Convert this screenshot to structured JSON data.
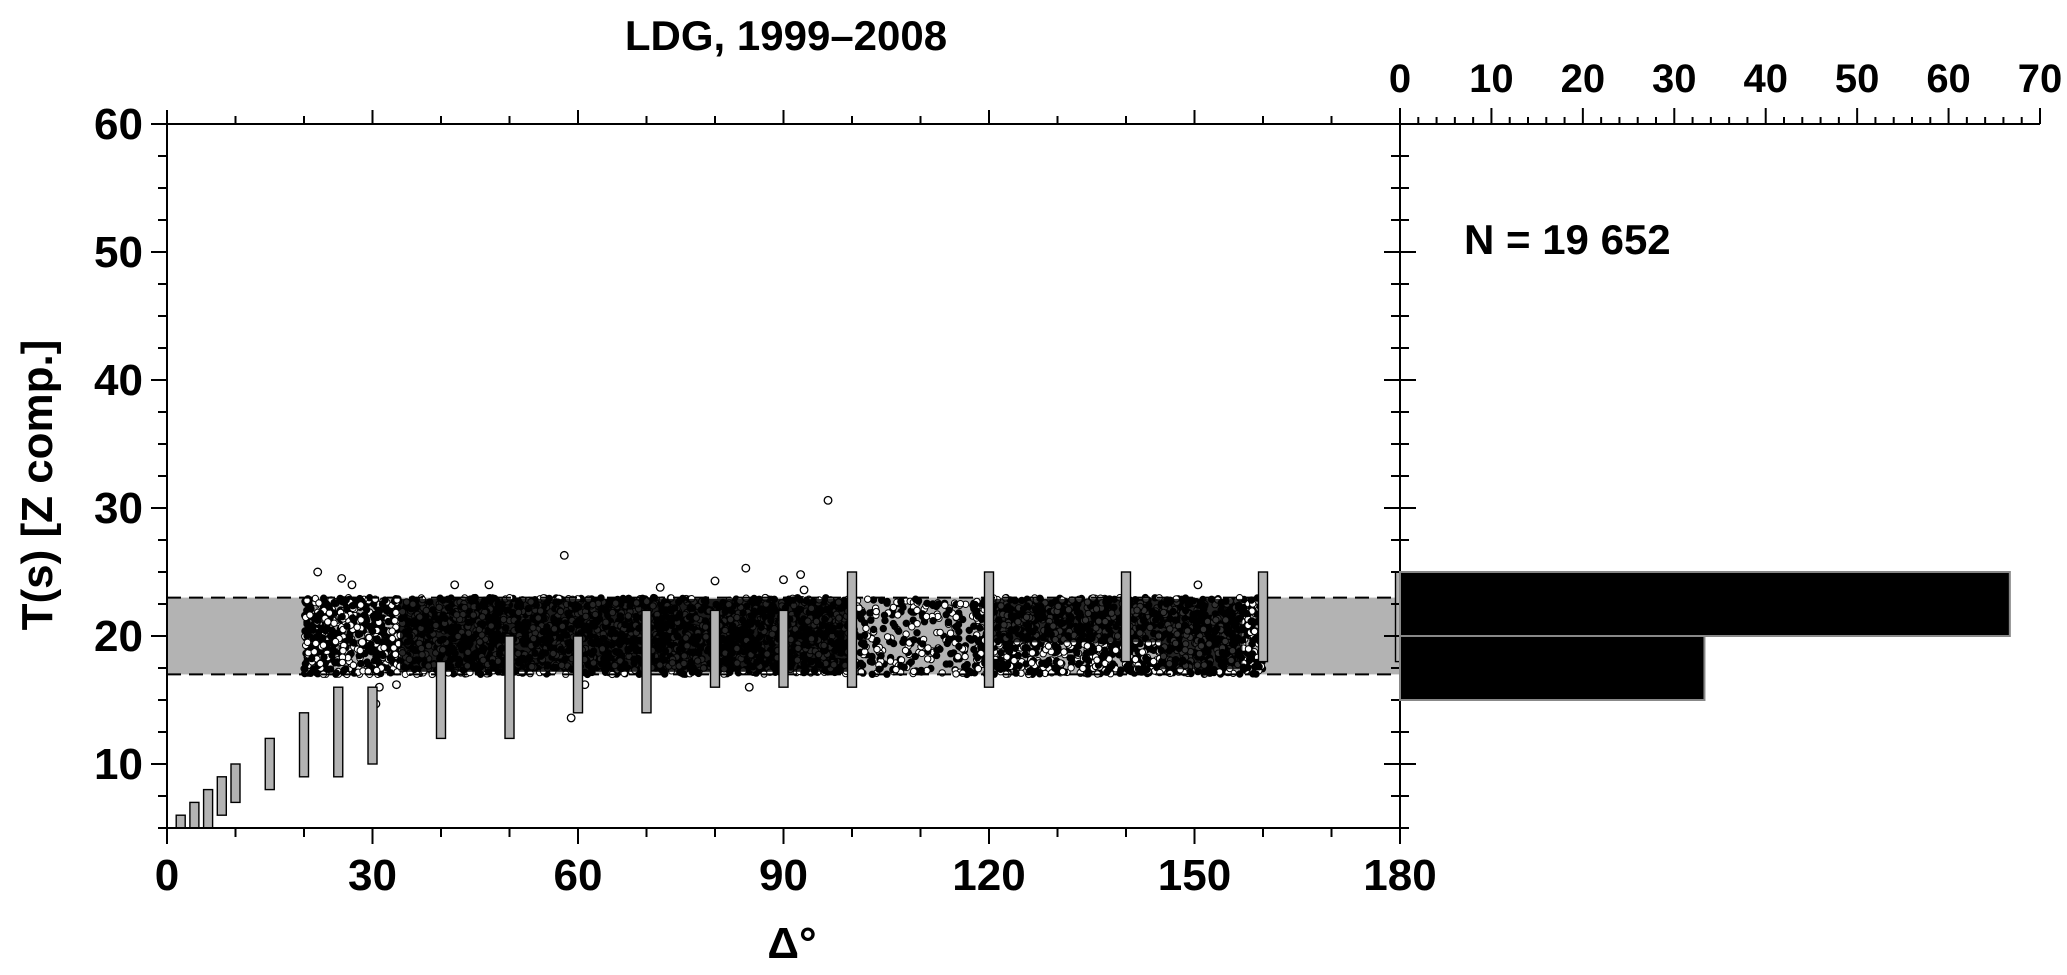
{
  "chart_data": [
    {
      "type": "scatter",
      "title": "LDG, 1999–2008",
      "xlabel": "Δ°",
      "ylabel": "T(s) [Z comp.]",
      "xlim": [
        0,
        180
      ],
      "ylim": [
        5,
        60
      ],
      "x_ticks": [
        0,
        30,
        60,
        90,
        120,
        150,
        180
      ],
      "y_ticks": [
        10,
        20,
        30,
        40,
        50,
        60
      ],
      "grid": false,
      "band": {
        "ymin": 17,
        "ymax": 23,
        "xmin": 0,
        "xmax": 180,
        "color": "#b3b3b3",
        "line_style": "dashed"
      },
      "scatter_dense_region": {
        "xmin": 20,
        "xmax": 160,
        "ymin": 17,
        "ymax": 23
      },
      "outliers": [
        [
          22,
          25
        ],
        [
          25.5,
          24.5
        ],
        [
          27,
          24
        ],
        [
          28.5,
          19.5
        ],
        [
          31,
          16
        ],
        [
          30,
          15
        ],
        [
          30.5,
          14.7
        ],
        [
          33.5,
          16.2
        ],
        [
          42,
          24
        ],
        [
          47,
          24
        ],
        [
          58,
          26.3
        ],
        [
          59,
          13.6
        ],
        [
          61,
          16.2
        ],
        [
          72,
          23.8
        ],
        [
          80,
          24.3
        ],
        [
          84.5,
          25.3
        ],
        [
          85,
          16
        ],
        [
          90,
          24.4
        ],
        [
          92.5,
          24.8
        ],
        [
          93,
          23.6
        ],
        [
          96.5,
          30.6
        ],
        [
          150.5,
          24
        ]
      ],
      "windows": [
        {
          "delta": 2,
          "tmin": 5,
          "tmax": 6
        },
        {
          "delta": 4,
          "tmin": 5,
          "tmax": 7
        },
        {
          "delta": 6,
          "tmin": 5,
          "tmax": 8
        },
        {
          "delta": 8,
          "tmin": 6,
          "tmax": 9
        },
        {
          "delta": 10,
          "tmin": 7,
          "tmax": 10
        },
        {
          "delta": 15,
          "tmin": 8,
          "tmax": 12
        },
        {
          "delta": 20,
          "tmin": 9,
          "tmax": 14
        },
        {
          "delta": 25,
          "tmin": 9,
          "tmax": 16
        },
        {
          "delta": 30,
          "tmin": 10,
          "tmax": 16
        },
        {
          "delta": 40,
          "tmin": 12,
          "tmax": 18
        },
        {
          "delta": 50,
          "tmin": 12,
          "tmax": 20
        },
        {
          "delta": 60,
          "tmin": 14,
          "tmax": 20
        },
        {
          "delta": 70,
          "tmin": 14,
          "tmax": 22
        },
        {
          "delta": 80,
          "tmin": 16,
          "tmax": 22
        },
        {
          "delta": 90,
          "tmin": 16,
          "tmax": 22
        },
        {
          "delta": 100,
          "tmin": 16,
          "tmax": 25
        },
        {
          "delta": 120,
          "tmin": 16,
          "tmax": 25
        },
        {
          "delta": 140,
          "tmin": 18,
          "tmax": 25
        },
        {
          "delta": 160,
          "tmin": 18,
          "tmax": 25
        },
        {
          "delta": 180,
          "tmin": 18,
          "tmax": 25
        }
      ]
    },
    {
      "type": "bar",
      "orientation": "horizontal",
      "xlim": [
        0,
        70
      ],
      "x_ticks": [
        0,
        10,
        20,
        30,
        40,
        50,
        60,
        70
      ],
      "x_axis_position": "top",
      "ylim": [
        5,
        60
      ],
      "annotation": "N = 19 652",
      "bars": [
        {
          "tmin": 20,
          "tmax": 25,
          "value": 66.7,
          "color": "#000000"
        },
        {
          "tmin": 15,
          "tmax": 20,
          "value": 33.3,
          "color": "#000000"
        }
      ]
    }
  ]
}
